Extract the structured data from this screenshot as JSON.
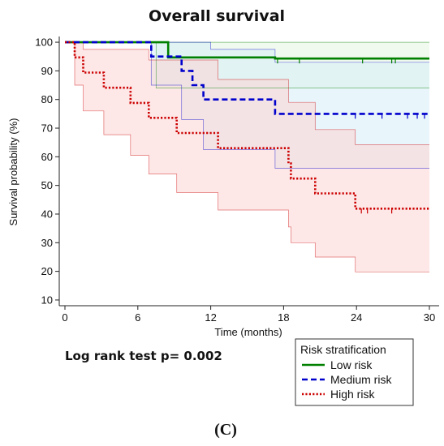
{
  "chart_data": {
    "type": "line",
    "title": "Overall survival",
    "xlabel": "Time (months)",
    "ylabel": "Survival probability (%)",
    "xlim": [
      0,
      30
    ],
    "ylim": [
      8,
      102
    ],
    "xticks": [
      0,
      6,
      12,
      18,
      24,
      30
    ],
    "yticks": [
      10,
      20,
      30,
      40,
      50,
      60,
      70,
      80,
      90,
      100
    ],
    "grid": false,
    "annotation": "Log rank test p= 0.002",
    "panel_label": "(C)",
    "legend": {
      "title": "Risk stratification",
      "position": "bottom-right"
    },
    "series": [
      {
        "name": "Low risk",
        "color": "#008000",
        "band_color": "#e6f5e0",
        "style": "solid",
        "steps": [
          [
            0,
            100
          ],
          [
            8.5,
            100
          ],
          [
            8.5,
            94.7
          ],
          [
            17.3,
            94.7
          ],
          [
            17.3,
            94.3
          ],
          [
            30,
            94.3
          ]
        ],
        "ci_upper": [
          [
            0,
            100
          ],
          [
            30,
            100
          ]
        ],
        "ci_lower": [
          [
            0,
            100
          ],
          [
            7.5,
            100
          ],
          [
            7.5,
            84
          ],
          [
            30,
            84
          ]
        ],
        "censor": [
          [
            17.5,
            94.3
          ],
          [
            19.3,
            94.3
          ],
          [
            24.5,
            94.3
          ],
          [
            26.9,
            94.3
          ],
          [
            27.2,
            94.3
          ]
        ]
      },
      {
        "name": "Medium risk",
        "color": "#0000cc",
        "band_color": "#d5ecf7",
        "style": "dashed",
        "steps": [
          [
            0,
            100
          ],
          [
            7.1,
            100
          ],
          [
            7.1,
            95
          ],
          [
            9.6,
            95
          ],
          [
            9.6,
            90
          ],
          [
            10.5,
            90
          ],
          [
            10.5,
            85
          ],
          [
            11.4,
            85
          ],
          [
            11.4,
            80
          ],
          [
            17.3,
            80
          ],
          [
            17.3,
            75
          ],
          [
            30,
            75
          ]
        ],
        "ci_upper": [
          [
            0,
            100
          ],
          [
            12,
            100
          ],
          [
            12,
            97.5
          ],
          [
            17.3,
            97.5
          ],
          [
            17.3,
            93
          ],
          [
            30,
            93
          ]
        ],
        "ci_lower": [
          [
            0,
            100
          ],
          [
            7.1,
            100
          ],
          [
            7.1,
            85
          ],
          [
            9.6,
            85
          ],
          [
            9.6,
            73
          ],
          [
            11.4,
            73
          ],
          [
            11.4,
            62.5
          ],
          [
            17.3,
            62.5
          ],
          [
            17.3,
            56
          ],
          [
            30,
            56
          ]
        ],
        "censor": [
          [
            23.9,
            75
          ],
          [
            26.1,
            75
          ],
          [
            28.2,
            75
          ],
          [
            29,
            75
          ],
          [
            29.6,
            75
          ]
        ]
      },
      {
        "name": "High risk",
        "color": "#cc0000",
        "band_color": "#fbd4d4",
        "style": "dotted",
        "steps": [
          [
            0,
            100
          ],
          [
            0.8,
            100
          ],
          [
            0.8,
            94.7
          ],
          [
            1.5,
            94.7
          ],
          [
            1.5,
            89.4
          ],
          [
            3.2,
            89.4
          ],
          [
            3.2,
            84.1
          ],
          [
            5.4,
            84.1
          ],
          [
            5.4,
            78.8
          ],
          [
            6.9,
            78.8
          ],
          [
            6.9,
            73.6
          ],
          [
            9.2,
            73.6
          ],
          [
            9.2,
            68.3
          ],
          [
            12.6,
            68.3
          ],
          [
            12.6,
            63
          ],
          [
            18.4,
            63
          ],
          [
            18.4,
            57.7
          ],
          [
            18.6,
            57.7
          ],
          [
            18.6,
            52.4
          ],
          [
            20.6,
            52.4
          ],
          [
            20.6,
            47.2
          ],
          [
            23.9,
            47.2
          ],
          [
            23.9,
            41.9
          ],
          [
            30,
            41.9
          ]
        ],
        "ci_upper": [
          [
            0,
            100
          ],
          [
            1.5,
            100
          ],
          [
            1.5,
            97.5
          ],
          [
            6.9,
            97.5
          ],
          [
            6.9,
            93.8
          ],
          [
            12.6,
            93.8
          ],
          [
            12.6,
            87
          ],
          [
            18.4,
            87
          ],
          [
            18.4,
            79
          ],
          [
            20.6,
            79
          ],
          [
            20.6,
            69.5
          ],
          [
            23.9,
            69.5
          ],
          [
            23.9,
            64.2
          ],
          [
            30,
            64.2
          ]
        ],
        "ci_lower": [
          [
            0,
            100
          ],
          [
            0.8,
            100
          ],
          [
            0.8,
            85
          ],
          [
            1.5,
            85
          ],
          [
            1.5,
            76
          ],
          [
            3.2,
            76
          ],
          [
            3.2,
            67.7
          ],
          [
            5.4,
            67.7
          ],
          [
            5.4,
            60.5
          ],
          [
            6.9,
            60.5
          ],
          [
            6.9,
            54
          ],
          [
            9.2,
            54
          ],
          [
            9.2,
            47.5
          ],
          [
            12.6,
            47.5
          ],
          [
            12.6,
            41.4
          ],
          [
            18.4,
            41.4
          ],
          [
            18.4,
            35.5
          ],
          [
            18.6,
            35.5
          ],
          [
            18.6,
            30
          ],
          [
            20.6,
            30
          ],
          [
            20.6,
            25
          ],
          [
            23.9,
            25
          ],
          [
            23.9,
            19.8
          ],
          [
            30,
            19.8
          ]
        ],
        "censor": [
          [
            24.4,
            41.9
          ],
          [
            24.9,
            41.9
          ],
          [
            26.9,
            41.9
          ]
        ]
      }
    ]
  }
}
